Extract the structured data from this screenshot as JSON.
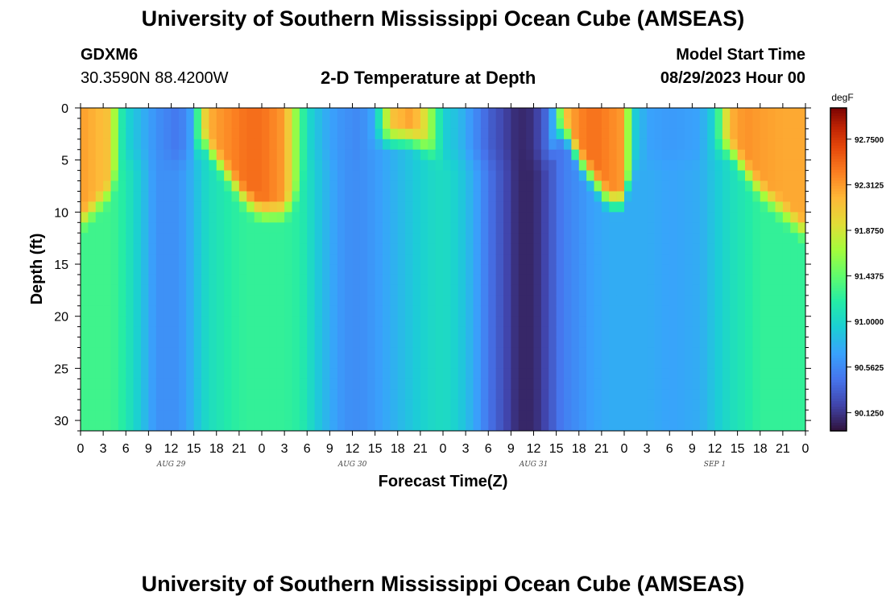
{
  "header": {
    "title": "University of Southern Mississippi Ocean Cube (AMSEAS)",
    "station_id": "GDXM6",
    "coordinates": "30.3590N  88.4200W",
    "model_start_label": "Model Start Time",
    "model_start_value": "08/29/2023 Hour 00",
    "footer_title": "University of Southern Mississippi Ocean Cube (AMSEAS)"
  },
  "chart_data": {
    "type": "heatmap",
    "title": "2-D Temperature at Depth",
    "xlabel": "Forecast Time(Z)",
    "ylabel": "Depth (ft)",
    "units": "degF",
    "x_hours_range": [
      0,
      96
    ],
    "x_ticks": [
      "0",
      "3",
      "6",
      "9",
      "12",
      "15",
      "18",
      "21",
      "0",
      "3",
      "6",
      "9",
      "12",
      "15",
      "18",
      "21",
      "0",
      "3",
      "6",
      "9",
      "12",
      "15",
      "18",
      "21",
      "0",
      "3",
      "6",
      "9",
      "12",
      "15",
      "18",
      "21",
      "0"
    ],
    "day_labels": [
      {
        "label": "AUG 29",
        "hour": 12
      },
      {
        "label": "AUG 30",
        "hour": 36
      },
      {
        "label": "AUG 31",
        "hour": 60
      },
      {
        "label": "SEP 1",
        "hour": 84
      }
    ],
    "y_range": [
      0,
      31
    ],
    "y_ticks": [
      0,
      5,
      10,
      15,
      20,
      25,
      30
    ],
    "colorbar": {
      "min": 89.95,
      "max": 93.05,
      "ticks": [
        "92.7500",
        "92.3125",
        "91.8750",
        "91.4375",
        "91.0000",
        "90.5625",
        "90.1250"
      ],
      "tick_values": [
        92.75,
        92.3125,
        91.875,
        91.4375,
        91.0,
        90.5625,
        90.125
      ]
    },
    "profiles": [
      {
        "hour": 0,
        "surface": 92.3,
        "deep": 91.3,
        "mixed_depth": 11
      },
      {
        "hour": 4,
        "surface": 92.1,
        "deep": 91.3,
        "mixed_depth": 8
      },
      {
        "hour": 5,
        "surface": 91.3,
        "deep": 91.25,
        "mixed_depth": 6
      },
      {
        "hour": 6,
        "surface": 91.0,
        "deep": 91.15,
        "mixed_depth": 5
      },
      {
        "hour": 8,
        "surface": 90.8,
        "deep": 90.9,
        "mixed_depth": 5
      },
      {
        "hour": 10,
        "surface": 90.6,
        "deep": 90.6,
        "mixed_depth": 5
      },
      {
        "hour": 13,
        "surface": 90.45,
        "deep": 90.6,
        "mixed_depth": 5
      },
      {
        "hour": 15,
        "surface": 90.75,
        "deep": 90.8,
        "mixed_depth": 5
      },
      {
        "hour": 16,
        "surface": 91.8,
        "deep": 90.95,
        "mixed_depth": 3
      },
      {
        "hour": 17,
        "surface": 92.2,
        "deep": 91.05,
        "mixed_depth": 4
      },
      {
        "hour": 18,
        "surface": 92.3,
        "deep": 91.1,
        "mixed_depth": 5
      },
      {
        "hour": 20,
        "surface": 92.4,
        "deep": 91.2,
        "mixed_depth": 7
      },
      {
        "hour": 22,
        "surface": 92.5,
        "deep": 91.25,
        "mixed_depth": 9
      },
      {
        "hour": 24,
        "surface": 92.5,
        "deep": 91.25,
        "mixed_depth": 10
      },
      {
        "hour": 27,
        "surface": 92.3,
        "deep": 91.25,
        "mixed_depth": 10
      },
      {
        "hour": 29,
        "surface": 91.4,
        "deep": 91.2,
        "mixed_depth": 8
      },
      {
        "hour": 30,
        "surface": 91.05,
        "deep": 91.1,
        "mixed_depth": 5
      },
      {
        "hour": 31,
        "surface": 90.9,
        "deep": 90.95,
        "mixed_depth": 5
      },
      {
        "hour": 33,
        "surface": 90.7,
        "deep": 90.75,
        "mixed_depth": 5
      },
      {
        "hour": 35,
        "surface": 90.6,
        "deep": 90.6,
        "mixed_depth": 5
      },
      {
        "hour": 37,
        "surface": 90.55,
        "deep": 90.58,
        "mixed_depth": 5
      },
      {
        "hour": 39,
        "surface": 90.75,
        "deep": 90.65,
        "mixed_depth": 3
      },
      {
        "hour": 41,
        "surface": 92.1,
        "deep": 90.75,
        "mixed_depth": 3
      },
      {
        "hour": 44,
        "surface": 92.3,
        "deep": 90.9,
        "mixed_depth": 3
      },
      {
        "hour": 46,
        "surface": 91.8,
        "deep": 91.0,
        "mixed_depth": 4
      },
      {
        "hour": 48,
        "surface": 90.95,
        "deep": 91.05,
        "mixed_depth": 5
      },
      {
        "hour": 50,
        "surface": 90.85,
        "deep": 90.95,
        "mixed_depth": 5
      },
      {
        "hour": 52,
        "surface": 90.6,
        "deep": 90.75,
        "mixed_depth": 5
      },
      {
        "hour": 54,
        "surface": 90.35,
        "deep": 90.45,
        "mixed_depth": 5
      },
      {
        "hour": 56,
        "surface": 90.2,
        "deep": 90.25,
        "mixed_depth": 5
      },
      {
        "hour": 58,
        "surface": 90.05,
        "deep": 90.05,
        "mixed_depth": 5
      },
      {
        "hour": 60,
        "surface": 90.1,
        "deep": 90.05,
        "mixed_depth": 5
      },
      {
        "hour": 62,
        "surface": 90.45,
        "deep": 90.25,
        "mixed_depth": 5
      },
      {
        "hour": 63,
        "surface": 91.0,
        "deep": 90.4,
        "mixed_depth": 3
      },
      {
        "hour": 64,
        "surface": 92.1,
        "deep": 90.5,
        "mixed_depth": 2
      },
      {
        "hour": 66,
        "surface": 92.4,
        "deep": 90.6,
        "mixed_depth": 5
      },
      {
        "hour": 68,
        "surface": 92.5,
        "deep": 90.7,
        "mixed_depth": 7
      },
      {
        "hour": 70,
        "surface": 92.4,
        "deep": 90.75,
        "mixed_depth": 9
      },
      {
        "hour": 72,
        "surface": 92.3,
        "deep": 90.75,
        "mixed_depth": 9
      },
      {
        "hour": 73,
        "surface": 91.0,
        "deep": 90.75,
        "mixed_depth": 6
      },
      {
        "hour": 75,
        "surface": 90.7,
        "deep": 90.75,
        "mixed_depth": 5
      },
      {
        "hour": 78,
        "surface": 90.65,
        "deep": 90.7,
        "mixed_depth": 5
      },
      {
        "hour": 82,
        "surface": 90.7,
        "deep": 90.75,
        "mixed_depth": 5
      },
      {
        "hour": 84,
        "surface": 91.0,
        "deep": 90.9,
        "mixed_depth": 4
      },
      {
        "hour": 86,
        "surface": 92.2,
        "deep": 91.05,
        "mixed_depth": 4
      },
      {
        "hour": 88,
        "surface": 92.35,
        "deep": 91.15,
        "mixed_depth": 6
      },
      {
        "hour": 90,
        "surface": 92.3,
        "deep": 91.25,
        "mixed_depth": 8
      },
      {
        "hour": 93,
        "surface": 92.25,
        "deep": 91.25,
        "mixed_depth": 10
      },
      {
        "hour": 96,
        "surface": 92.25,
        "deep": 91.25,
        "mixed_depth": 12
      }
    ]
  }
}
